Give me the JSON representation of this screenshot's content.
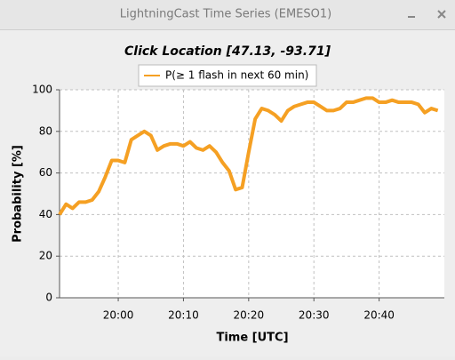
{
  "window": {
    "title": "LightningCast Time Series (EMESO1)"
  },
  "chart_data": {
    "type": "line",
    "title": "Click Location [47.13, -93.71]",
    "x_label": "Time [UTC]",
    "y_label": "Probability [%]",
    "x": [
      "19:51",
      "19:52",
      "19:53",
      "19:54",
      "19:55",
      "19:56",
      "19:57",
      "19:58",
      "19:59",
      "20:00",
      "20:01",
      "20:02",
      "20:03",
      "20:04",
      "20:05",
      "20:06",
      "20:07",
      "20:08",
      "20:09",
      "20:10",
      "20:11",
      "20:12",
      "20:13",
      "20:14",
      "20:15",
      "20:16",
      "20:17",
      "20:18",
      "20:19",
      "20:20",
      "20:21",
      "20:22",
      "20:23",
      "20:24",
      "20:25",
      "20:26",
      "20:27",
      "20:28",
      "20:29",
      "20:30",
      "20:31",
      "20:32",
      "20:33",
      "20:34",
      "20:35",
      "20:36",
      "20:37",
      "20:38",
      "20:39",
      "20:40",
      "20:41",
      "20:42",
      "20:43",
      "20:44",
      "20:45",
      "20:46",
      "20:47",
      "20:48",
      "20:49"
    ],
    "series": [
      {
        "name": "P(≥ 1 flash in next 60 min)",
        "color": "#f5a023",
        "values": [
          40,
          45,
          43,
          46,
          46,
          47,
          51,
          58,
          66,
          66,
          65,
          76,
          78,
          80,
          78,
          71,
          73,
          74,
          74,
          73,
          75,
          72,
          71,
          73,
          70,
          65,
          61,
          52,
          53,
          70,
          86,
          91,
          90,
          88,
          85,
          90,
          92,
          93,
          94,
          94,
          92,
          90,
          90,
          91,
          94,
          94,
          95,
          96,
          96,
          94,
          94,
          95,
          94,
          94,
          94,
          93,
          89,
          91,
          90
        ]
      }
    ],
    "xlim": [
      "19:51",
      "20:50"
    ],
    "xticks": [
      "20:00",
      "20:10",
      "20:20",
      "20:30",
      "20:40"
    ],
    "ylim": [
      0,
      100
    ],
    "yticks": [
      0,
      20,
      40,
      60,
      80,
      100
    ],
    "grid": true,
    "legend": "top"
  }
}
